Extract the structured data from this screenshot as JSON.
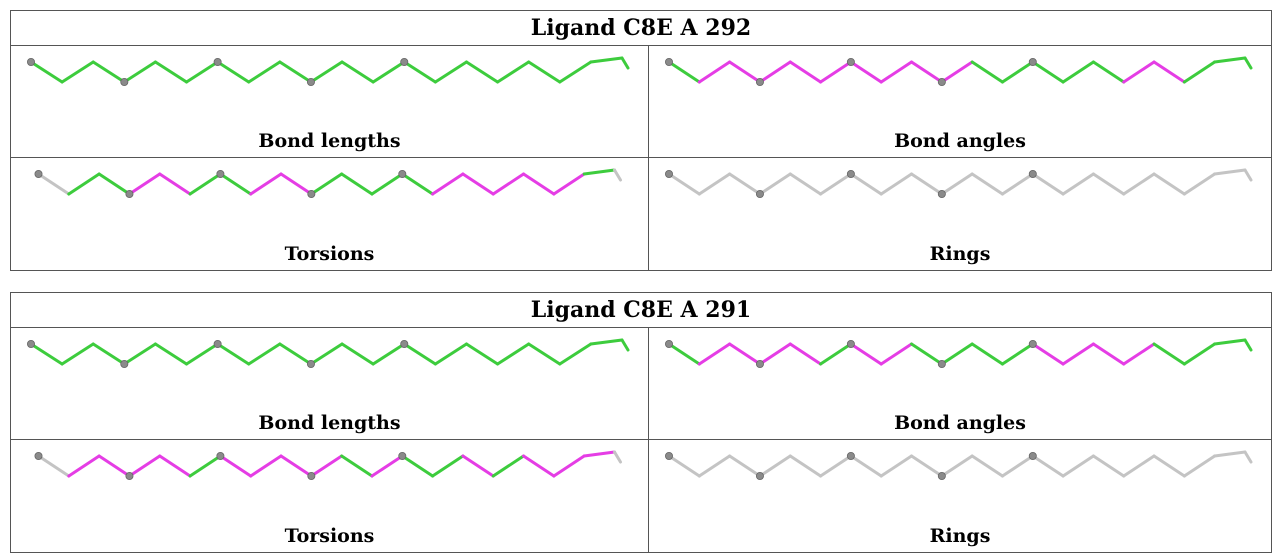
{
  "colors": {
    "good": "#3dcc3d",
    "bad": "#e53de5",
    "none": "#c4c4c4",
    "atom": "#8a8a8a"
  },
  "panels": [
    {
      "title": "Ligand C8E A 292",
      "cells": [
        {
          "caption": "Bond lengths",
          "bonds": [
            "good",
            "good",
            "good",
            "good",
            "good",
            "good",
            "good",
            "good",
            "good",
            "good",
            "good",
            "good",
            "good",
            "good",
            "good",
            "good",
            "good",
            "good",
            "good",
            "good"
          ]
        },
        {
          "caption": "Bond angles",
          "bonds": [
            "good",
            "bad",
            "bad",
            "bad",
            "bad",
            "bad",
            "bad",
            "bad",
            "bad",
            "bad",
            "good",
            "good",
            "good",
            "good",
            "good",
            "bad",
            "bad",
            "good",
            "good",
            "good"
          ]
        },
        {
          "caption": "Torsions",
          "bonds": [
            "none",
            "good",
            "good",
            "bad",
            "bad",
            "good",
            "good",
            "bad",
            "bad",
            "good",
            "good",
            "good",
            "good",
            "bad",
            "bad",
            "bad",
            "bad",
            "bad",
            "good",
            "none"
          ]
        },
        {
          "caption": "Rings",
          "bonds": [
            "none",
            "none",
            "none",
            "none",
            "none",
            "none",
            "none",
            "none",
            "none",
            "none",
            "none",
            "none",
            "none",
            "none",
            "none",
            "none",
            "none",
            "none",
            "none",
            "none"
          ]
        }
      ]
    },
    {
      "title": "Ligand C8E A 291",
      "cells": [
        {
          "caption": "Bond lengths",
          "bonds": [
            "good",
            "good",
            "good",
            "good",
            "good",
            "good",
            "good",
            "good",
            "good",
            "good",
            "good",
            "good",
            "good",
            "good",
            "good",
            "good",
            "good",
            "good",
            "good",
            "good"
          ]
        },
        {
          "caption": "Bond angles",
          "bonds": [
            "good",
            "bad",
            "bad",
            "bad",
            "bad",
            "good",
            "bad",
            "bad",
            "good",
            "good",
            "good",
            "good",
            "bad",
            "bad",
            "bad",
            "bad",
            "good",
            "good",
            "good",
            "good"
          ]
        },
        {
          "caption": "Torsions",
          "bonds": [
            "none",
            "bad",
            "bad",
            "bad",
            "bad",
            "good",
            "bad",
            "bad",
            "bad",
            "bad",
            "good",
            "bad",
            "good",
            "good",
            "bad",
            "good",
            "bad",
            "bad",
            "bad",
            "none"
          ]
        },
        {
          "caption": "Rings",
          "bonds": [
            "none",
            "none",
            "none",
            "none",
            "none",
            "none",
            "none",
            "none",
            "none",
            "none",
            "none",
            "none",
            "none",
            "none",
            "none",
            "none",
            "none",
            "none",
            "none",
            "none"
          ]
        }
      ]
    }
  ]
}
